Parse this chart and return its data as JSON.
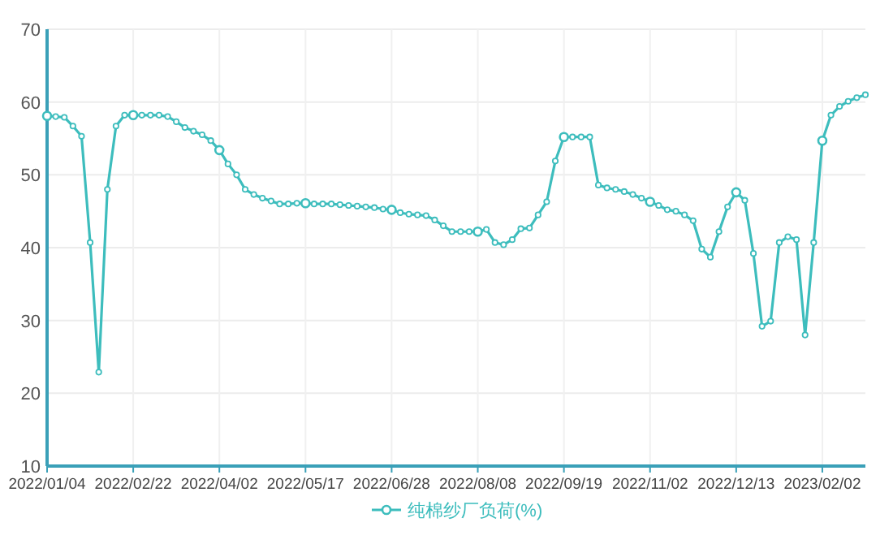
{
  "chart_data": {
    "type": "line",
    "categories": [
      "2022/01/04",
      null,
      null,
      null,
      null,
      null,
      null,
      null,
      null,
      null,
      "2022/02/22",
      null,
      null,
      null,
      null,
      null,
      null,
      null,
      null,
      null,
      "2022/04/02",
      null,
      null,
      null,
      null,
      null,
      null,
      null,
      null,
      null,
      "2022/05/17",
      null,
      null,
      null,
      null,
      null,
      null,
      null,
      null,
      null,
      "2022/06/28",
      null,
      null,
      null,
      null,
      null,
      null,
      null,
      null,
      null,
      "2022/08/08",
      null,
      null,
      null,
      null,
      null,
      null,
      null,
      null,
      null,
      "2022/09/19",
      null,
      null,
      null,
      null,
      null,
      null,
      null,
      null,
      null,
      "2022/11/02",
      null,
      null,
      null,
      null,
      null,
      null,
      null,
      null,
      null,
      "2022/12/13",
      null,
      null,
      null,
      null,
      null,
      null,
      null,
      null,
      null,
      "2023/02/02",
      null,
      null,
      null,
      null,
      null
    ],
    "series": [
      {
        "name": "纯棉纱厂负荷(%)",
        "color": "#3dbdbd",
        "values": [
          58.1,
          58,
          57.9,
          56.7,
          55.3,
          40.7,
          22.9,
          48,
          56.7,
          58.2,
          58.2,
          58.2,
          58.2,
          58.2,
          58,
          57.3,
          56.5,
          56,
          55.5,
          54.7,
          53.4,
          51.5,
          50,
          48,
          47.3,
          46.8,
          46.4,
          46,
          46,
          46.1,
          46.1,
          46,
          46,
          46,
          45.9,
          45.8,
          45.7,
          45.6,
          45.5,
          45.3,
          45.2,
          44.8,
          44.6,
          44.5,
          44.4,
          43.8,
          43,
          42.2,
          42.2,
          42.2,
          42.2,
          42.5,
          40.7,
          40.4,
          41.1,
          42.6,
          42.7,
          44.5,
          46.3,
          51.9,
          55.2,
          55.2,
          55.2,
          55.2,
          48.6,
          48.2,
          48,
          47.7,
          47.3,
          46.8,
          46.3,
          45.8,
          45.2,
          45,
          44.5,
          43.7,
          39.8,
          38.7,
          42.2,
          45.6,
          47.6,
          46.5,
          39.2,
          29.2,
          29.9,
          40.7,
          41.5,
          41.1,
          28,
          40.7,
          54.7,
          58.2,
          59.4,
          60.1,
          60.6,
          61
        ]
      }
    ],
    "ylim": [
      10,
      70
    ],
    "yticks": [
      10,
      20,
      30,
      40,
      50,
      60,
      70
    ],
    "grid": true,
    "legend": "bottom",
    "marker": "circle",
    "line_style": "solid"
  }
}
